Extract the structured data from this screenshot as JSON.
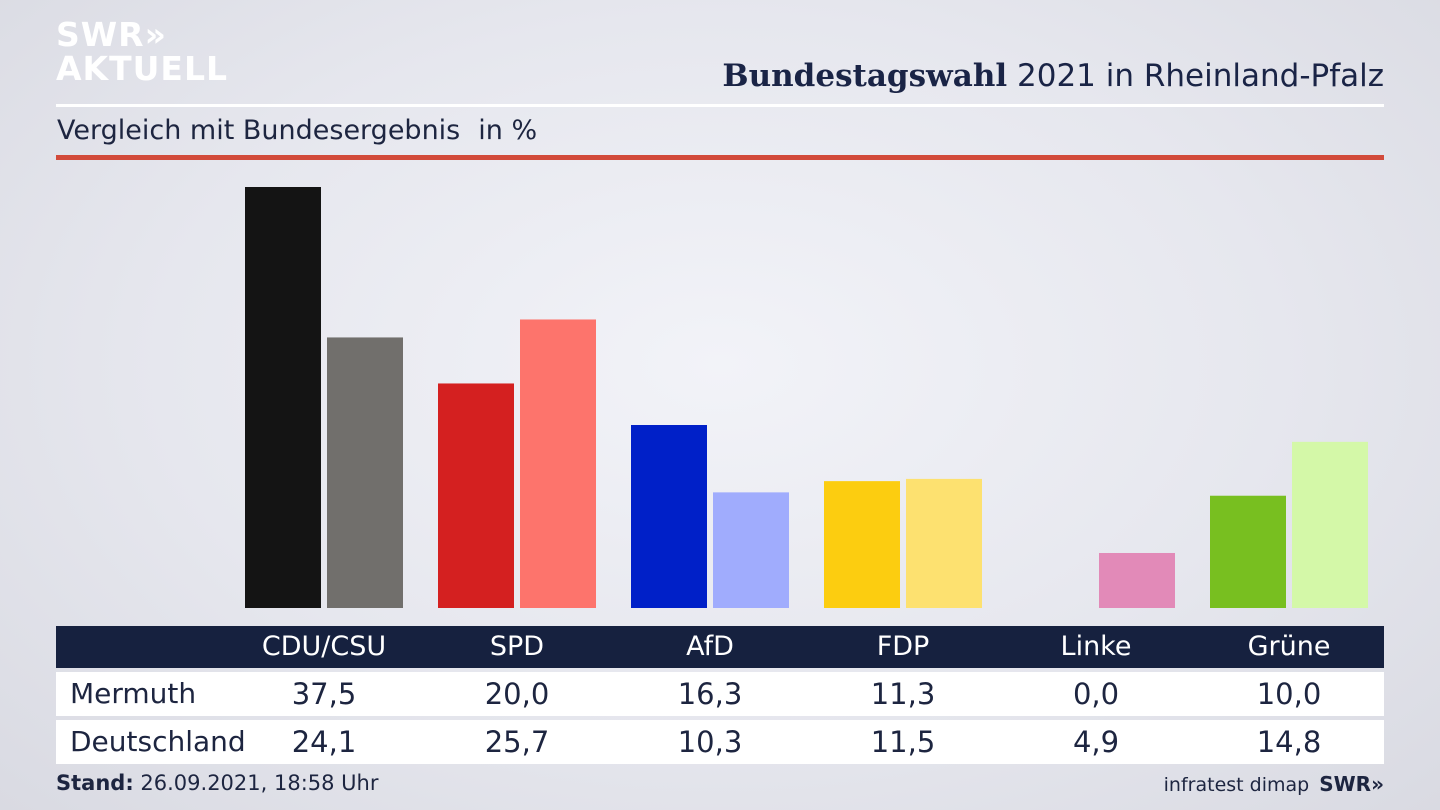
{
  "brand": {
    "line1": "SWR»",
    "line2": "AKTUELL",
    "footer_logo": "SWR»"
  },
  "header": {
    "title_bold": "Bundestagswahl",
    "title_rest": " 2021 in Rheinland-Pfalz"
  },
  "subheader": {
    "text": "Vergleich mit Bundesergebnis",
    "unit": "in %"
  },
  "footer": {
    "stand_label": "Stand:",
    "stand_value": " 26.09.2021, 18:58 Uhr",
    "source": "infratest dimap"
  },
  "chart_data": {
    "type": "bar",
    "title": "Bundestagswahl 2021 in Rheinland-Pfalz",
    "subtitle": "Vergleich mit Bundesergebnis",
    "ylabel": "in %",
    "categories": [
      "CDU/CSU",
      "SPD",
      "AfD",
      "FDP",
      "Linke",
      "Grüne"
    ],
    "series": [
      {
        "name": "Mermuth",
        "values": [
          37.5,
          20.0,
          16.3,
          11.3,
          0.0,
          10.0
        ],
        "colors": [
          "#141414",
          "#d42020",
          "#0020c8",
          "#fccd10",
          "#e28ab8",
          "#78bf20"
        ]
      },
      {
        "name": "Deutschland",
        "values": [
          24.1,
          25.7,
          10.3,
          11.5,
          4.9,
          14.8
        ],
        "colors": [
          "#716f6c",
          "#fd746c",
          "#a0acfd",
          "#fde170",
          "#e28ab8",
          "#d4f8a8"
        ]
      }
    ],
    "display_values": [
      [
        "37,5",
        "20,0",
        "16,3",
        "11,3",
        "0,0",
        "10,0"
      ],
      [
        "24,1",
        "25,7",
        "10,3",
        "11,5",
        "4,9",
        "14,8"
      ]
    ],
    "ylim": [
      0,
      37.5
    ],
    "grid": false,
    "legend": "table-below"
  }
}
